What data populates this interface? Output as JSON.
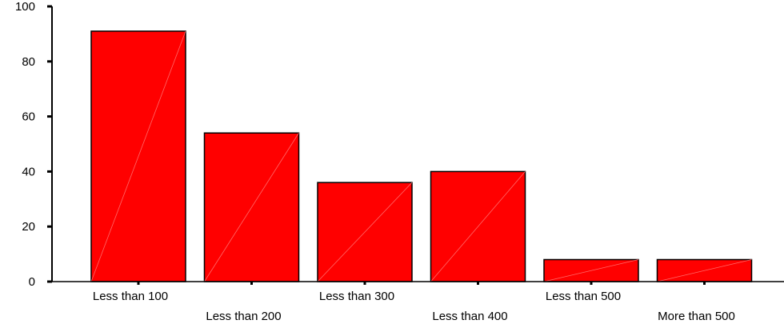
{
  "chart_data": {
    "type": "bar",
    "title": "",
    "xlabel": "",
    "ylabel": "",
    "categories": [
      "Less than 100",
      "Less than 200",
      "Less than 300",
      "Less than 400",
      "Less than 500",
      "More than 500"
    ],
    "values": [
      91,
      54,
      36,
      40,
      8,
      8
    ],
    "ylim": [
      0,
      100
    ],
    "yticks": [
      "0",
      "20",
      "40",
      "60",
      "80",
      "100"
    ],
    "grid": false,
    "legend": "none",
    "bar_color": "#ff0000"
  }
}
